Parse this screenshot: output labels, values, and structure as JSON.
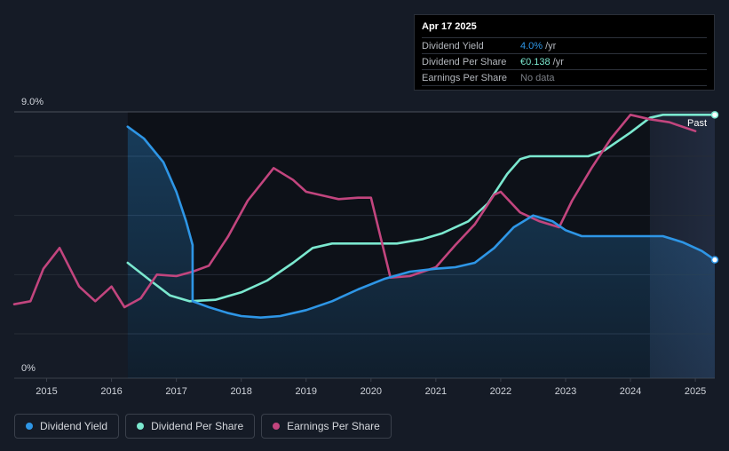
{
  "tooltip": {
    "date": "Apr 17 2025",
    "rows": [
      {
        "label": "Dividend Yield",
        "value": "4.0%",
        "unit": "/yr",
        "color": "#2e96e6"
      },
      {
        "label": "Dividend Per Share",
        "value": "€0.138",
        "unit": "/yr",
        "color": "#7be8cf"
      },
      {
        "label": "Earnings Per Share",
        "value": "No data",
        "unit": "",
        "color": "#7b7f86"
      }
    ]
  },
  "legend": [
    {
      "label": "Dividend Yield",
      "color": "#2e96e6"
    },
    {
      "label": "Dividend Per Share",
      "color": "#7be8cf"
    },
    {
      "label": "Earnings Per Share",
      "color": "#c2457e"
    }
  ],
  "chart_data": {
    "type": "line",
    "y_tick_labels": [
      "9.0%",
      "0%"
    ],
    "ylim": [
      0,
      9
    ],
    "xlim": [
      2014.5,
      2025.3
    ],
    "x_ticks": [
      2015,
      2016,
      2017,
      2018,
      2019,
      2020,
      2021,
      2022,
      2023,
      2024,
      2025
    ],
    "past_label": "Past",
    "past_region_start": 2024.3,
    "series": [
      {
        "name": "Dividend Yield",
        "color": "#2e96e6",
        "points": [
          [
            2016.25,
            8.5
          ],
          [
            2016.5,
            8.1
          ],
          [
            2016.8,
            7.3
          ],
          [
            2017.0,
            6.3
          ],
          [
            2017.15,
            5.3
          ],
          [
            2017.25,
            4.5
          ],
          [
            2017.25,
            2.6
          ],
          [
            2017.5,
            2.4
          ],
          [
            2017.8,
            2.2
          ],
          [
            2018.0,
            2.1
          ],
          [
            2018.3,
            2.05
          ],
          [
            2018.6,
            2.1
          ],
          [
            2019.0,
            2.3
          ],
          [
            2019.4,
            2.6
          ],
          [
            2019.8,
            3.0
          ],
          [
            2020.2,
            3.35
          ],
          [
            2020.6,
            3.6
          ],
          [
            2021.0,
            3.7
          ],
          [
            2021.3,
            3.75
          ],
          [
            2021.6,
            3.9
          ],
          [
            2021.9,
            4.4
          ],
          [
            2022.2,
            5.1
          ],
          [
            2022.5,
            5.5
          ],
          [
            2022.8,
            5.3
          ],
          [
            2023.0,
            5.0
          ],
          [
            2023.25,
            4.8
          ],
          [
            2023.6,
            4.8
          ],
          [
            2024.0,
            4.8
          ],
          [
            2024.5,
            4.8
          ],
          [
            2024.8,
            4.6
          ],
          [
            2025.1,
            4.3
          ],
          [
            2025.3,
            4.0
          ]
        ]
      },
      {
        "name": "Dividend Per Share",
        "color": "#7be8cf",
        "points": [
          [
            2016.25,
            3.9
          ],
          [
            2016.6,
            3.3
          ],
          [
            2016.9,
            2.8
          ],
          [
            2017.2,
            2.6
          ],
          [
            2017.6,
            2.65
          ],
          [
            2018.0,
            2.9
          ],
          [
            2018.4,
            3.3
          ],
          [
            2018.8,
            3.9
          ],
          [
            2019.1,
            4.4
          ],
          [
            2019.4,
            4.55
          ],
          [
            2020.0,
            4.55
          ],
          [
            2020.4,
            4.55
          ],
          [
            2020.8,
            4.7
          ],
          [
            2021.1,
            4.9
          ],
          [
            2021.5,
            5.3
          ],
          [
            2021.8,
            5.9
          ],
          [
            2022.1,
            6.9
          ],
          [
            2022.3,
            7.4
          ],
          [
            2022.45,
            7.5
          ],
          [
            2022.8,
            7.5
          ],
          [
            2023.35,
            7.5
          ],
          [
            2023.6,
            7.7
          ],
          [
            2024.0,
            8.3
          ],
          [
            2024.3,
            8.8
          ],
          [
            2024.5,
            8.9
          ],
          [
            2025.3,
            8.9
          ]
        ]
      },
      {
        "name": "Earnings Per Share",
        "color": "#c2457e",
        "points": [
          [
            2014.5,
            2.5
          ],
          [
            2014.75,
            2.6
          ],
          [
            2014.95,
            3.7
          ],
          [
            2015.2,
            4.4
          ],
          [
            2015.5,
            3.1
          ],
          [
            2015.75,
            2.6
          ],
          [
            2016.0,
            3.1
          ],
          [
            2016.2,
            2.4
          ],
          [
            2016.45,
            2.7
          ],
          [
            2016.7,
            3.5
          ],
          [
            2017.0,
            3.45
          ],
          [
            2017.25,
            3.6
          ],
          [
            2017.5,
            3.8
          ],
          [
            2017.8,
            4.8
          ],
          [
            2018.1,
            6.0
          ],
          [
            2018.5,
            7.1
          ],
          [
            2018.8,
            6.7
          ],
          [
            2019.0,
            6.3
          ],
          [
            2019.3,
            6.15
          ],
          [
            2019.5,
            6.05
          ],
          [
            2019.8,
            6.1
          ],
          [
            2020.0,
            6.1
          ],
          [
            2020.3,
            3.4
          ],
          [
            2020.6,
            3.45
          ],
          [
            2021.0,
            3.75
          ],
          [
            2021.3,
            4.5
          ],
          [
            2021.6,
            5.2
          ],
          [
            2021.9,
            6.2
          ],
          [
            2022.0,
            6.3
          ],
          [
            2022.3,
            5.6
          ],
          [
            2022.6,
            5.3
          ],
          [
            2022.9,
            5.1
          ],
          [
            2023.1,
            6.0
          ],
          [
            2023.4,
            7.1
          ],
          [
            2023.7,
            8.1
          ],
          [
            2024.0,
            8.9
          ],
          [
            2024.3,
            8.75
          ],
          [
            2024.6,
            8.65
          ],
          [
            2025.0,
            8.35
          ]
        ]
      }
    ]
  }
}
